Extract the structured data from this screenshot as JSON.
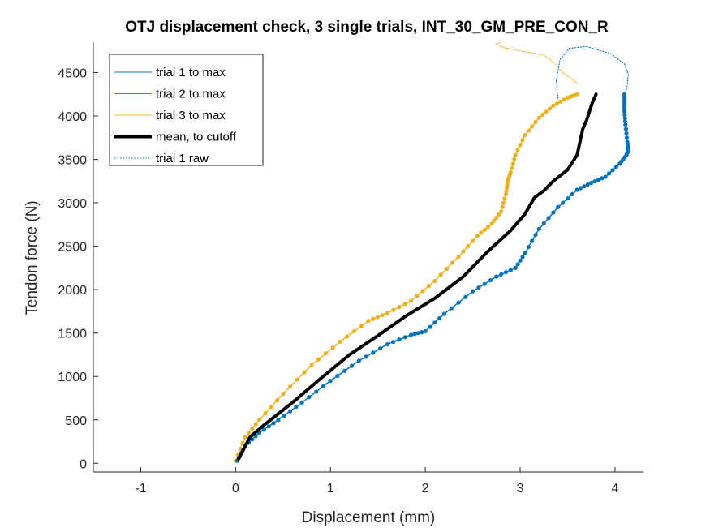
{
  "chart_data": {
    "type": "line",
    "title": "OTJ displacement check, 3 single trials, INT_30_GM_PRE_CON_R",
    "xlabel": "Displacement (mm)",
    "ylabel": "Tendon force (N)",
    "xlim": [
      -1.5,
      4.3
    ],
    "ylim": [
      -100,
      4850
    ],
    "xticks": [
      -1,
      0,
      1,
      2,
      3,
      4
    ],
    "yticks": [
      0,
      500,
      1000,
      1500,
      2000,
      2500,
      3000,
      3500,
      4000,
      4500
    ],
    "grid": false,
    "legend_position": "top-left",
    "legend": [
      "trial 1 to max",
      "trial 2 to max",
      "trial 3 to max",
      "mean, to cutoff",
      "trial 1 raw"
    ],
    "series": [
      {
        "name": "trial 1 to max",
        "color": "#0072BD",
        "style": "solid-with-markers",
        "x": [
          0.02,
          0.1,
          0.25,
          0.45,
          0.7,
          1.0,
          1.3,
          1.6,
          1.85,
          2.0,
          2.2,
          2.5,
          2.75,
          2.95,
          3.05,
          3.2,
          3.4,
          3.6,
          3.75,
          3.9,
          4.05,
          4.12,
          4.14,
          4.13,
          4.11,
          4.1,
          4.1,
          4.1
        ],
        "y": [
          30,
          200,
          350,
          500,
          700,
          950,
          1180,
          1370,
          1480,
          1520,
          1720,
          1980,
          2150,
          2250,
          2420,
          2700,
          2950,
          3150,
          3230,
          3300,
          3450,
          3550,
          3600,
          3700,
          3900,
          4050,
          4150,
          4250
        ]
      },
      {
        "name": "trial 2 to max",
        "color": "#D95319",
        "style": "solid",
        "x": [],
        "y": []
      },
      {
        "name": "trial 3 to max",
        "color": "#EDB120",
        "style": "solid-with-markers",
        "x": [
          0.0,
          0.1,
          0.25,
          0.5,
          0.8,
          1.1,
          1.4,
          1.6,
          1.85,
          2.1,
          2.35,
          2.55,
          2.7,
          2.8,
          2.85,
          2.87,
          2.9,
          2.95,
          3.05,
          3.2,
          3.35,
          3.5,
          3.6
        ],
        "y": [
          30,
          300,
          500,
          800,
          1130,
          1400,
          1640,
          1730,
          1870,
          2100,
          2380,
          2620,
          2760,
          2900,
          3100,
          3250,
          3350,
          3550,
          3780,
          3980,
          4120,
          4210,
          4250
        ]
      },
      {
        "name": "mean, to cutoff",
        "color": "#000000",
        "style": "thick",
        "x": [
          0.03,
          0.15,
          0.3,
          0.6,
          0.9,
          1.2,
          1.5,
          1.8,
          2.1,
          2.4,
          2.65,
          2.9,
          3.05,
          3.15,
          3.25,
          3.35,
          3.5,
          3.6,
          3.63,
          3.66,
          3.7,
          3.76,
          3.8
        ],
        "y": [
          50,
          300,
          440,
          700,
          980,
          1250,
          1470,
          1700,
          1900,
          2150,
          2430,
          2680,
          2870,
          3060,
          3140,
          3250,
          3380,
          3550,
          3700,
          3850,
          3950,
          4150,
          4250
        ]
      },
      {
        "name": "trial 1 raw",
        "color": "#0072BD",
        "style": "dotted",
        "x": [
          3.4,
          3.38,
          3.42,
          3.52,
          3.7,
          3.95,
          4.1,
          4.14,
          4.13,
          4.11
        ],
        "y": [
          4200,
          4400,
          4650,
          4780,
          4800,
          4720,
          4600,
          4480,
          4350,
          4250
        ]
      },
      {
        "name": "trial 3 raw",
        "color": "#EDB120",
        "style": "thin",
        "x": [
          3.6,
          3.45,
          3.35,
          3.25,
          3.1,
          2.95,
          2.82,
          2.75,
          2.8
        ],
        "y": [
          4380,
          4500,
          4620,
          4700,
          4730,
          4760,
          4790,
          4830,
          4850
        ]
      }
    ]
  }
}
